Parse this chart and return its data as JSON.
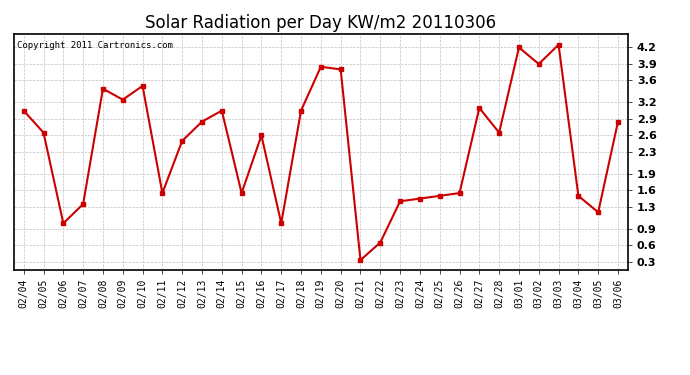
{
  "title": "Solar Radiation per Day KW/m2 20110306",
  "copyright": "Copyright 2011 Cartronics.com",
  "dates": [
    "02/04",
    "02/05",
    "02/06",
    "02/07",
    "02/08",
    "02/09",
    "02/10",
    "02/11",
    "02/12",
    "02/13",
    "02/14",
    "02/15",
    "02/16",
    "02/17",
    "02/18",
    "02/19",
    "02/20",
    "02/21",
    "02/22",
    "02/23",
    "02/24",
    "02/25",
    "02/26",
    "02/27",
    "02/28",
    "03/01",
    "03/02",
    "03/03",
    "03/04",
    "03/05",
    "03/06"
  ],
  "values": [
    3.05,
    2.65,
    1.0,
    1.35,
    3.45,
    3.25,
    3.5,
    1.55,
    2.5,
    2.85,
    3.05,
    1.55,
    2.6,
    1.0,
    3.05,
    3.85,
    3.8,
    0.33,
    0.65,
    1.4,
    1.45,
    1.5,
    1.55,
    3.1,
    2.65,
    4.2,
    3.9,
    4.25,
    1.5,
    1.2,
    2.85
  ],
  "line_color": "#cc0000",
  "marker": "s",
  "marker_size": 2.5,
  "ylim": [
    0.15,
    4.45
  ],
  "yticks": [
    0.3,
    0.6,
    0.9,
    1.3,
    1.6,
    1.9,
    2.3,
    2.6,
    2.9,
    3.2,
    3.6,
    3.9,
    4.2
  ],
  "background_color": "#ffffff",
  "grid_color": "#bbbbbb",
  "title_fontsize": 12,
  "tick_fontsize": 7,
  "copyright_fontsize": 6.5
}
